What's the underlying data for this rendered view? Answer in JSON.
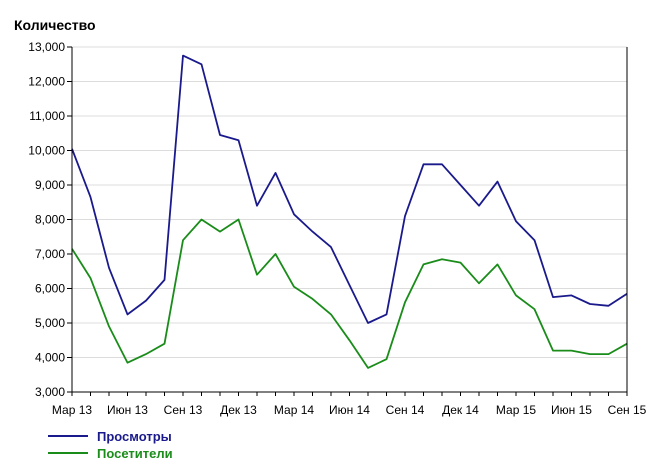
{
  "chart_data": {
    "type": "line",
    "title": "",
    "ylabel": "Количество",
    "xlabel": "",
    "ylim": [
      3000,
      13000
    ],
    "yticks": [
      3000,
      4000,
      5000,
      6000,
      7000,
      8000,
      9000,
      10000,
      11000,
      12000,
      13000
    ],
    "ytick_labels": [
      "3,000",
      "4,000",
      "5,000",
      "6,000",
      "7,000",
      "8,000",
      "9,000",
      "10,000",
      "11,000",
      "12,000",
      "13,000"
    ],
    "x_ticks": [
      {
        "index": 0,
        "label": "Мар 13"
      },
      {
        "index": 3,
        "label": "Июн 13"
      },
      {
        "index": 6,
        "label": "Сен 13"
      },
      {
        "index": 9,
        "label": "Дек 13"
      },
      {
        "index": 12,
        "label": "Мар 14"
      },
      {
        "index": 15,
        "label": "Июн 14"
      },
      {
        "index": 18,
        "label": "Сен 14"
      },
      {
        "index": 21,
        "label": "Дек 14"
      },
      {
        "index": 24,
        "label": "Мар 15"
      },
      {
        "index": 27,
        "label": "Июн 15"
      },
      {
        "index": 30,
        "label": "Сен 15"
      }
    ],
    "point_count": 31,
    "grid": "horizontal",
    "legend_position": "bottom-left",
    "series": [
      {
        "name": "Просмотры",
        "color": "#1a1a8c",
        "values": [
          10050,
          8650,
          6600,
          5250,
          5650,
          6250,
          12750,
          12500,
          10450,
          10300,
          8400,
          9350,
          8150,
          7650,
          7200,
          6100,
          5000,
          5250,
          8100,
          9600,
          9600,
          9000,
          8400,
          9100,
          7950,
          7400,
          5750,
          5800,
          5550,
          5500,
          5850
        ]
      },
      {
        "name": "Посетители",
        "color": "#1a8c1a",
        "values": [
          7150,
          6300,
          4900,
          3850,
          4100,
          4400,
          7400,
          8000,
          7650,
          8000,
          6400,
          7000,
          6050,
          5700,
          5250,
          4500,
          3700,
          3950,
          5600,
          6700,
          6850,
          6750,
          6150,
          6700,
          5800,
          5400,
          4200,
          4200,
          4100,
          4100,
          4400
        ]
      }
    ]
  }
}
